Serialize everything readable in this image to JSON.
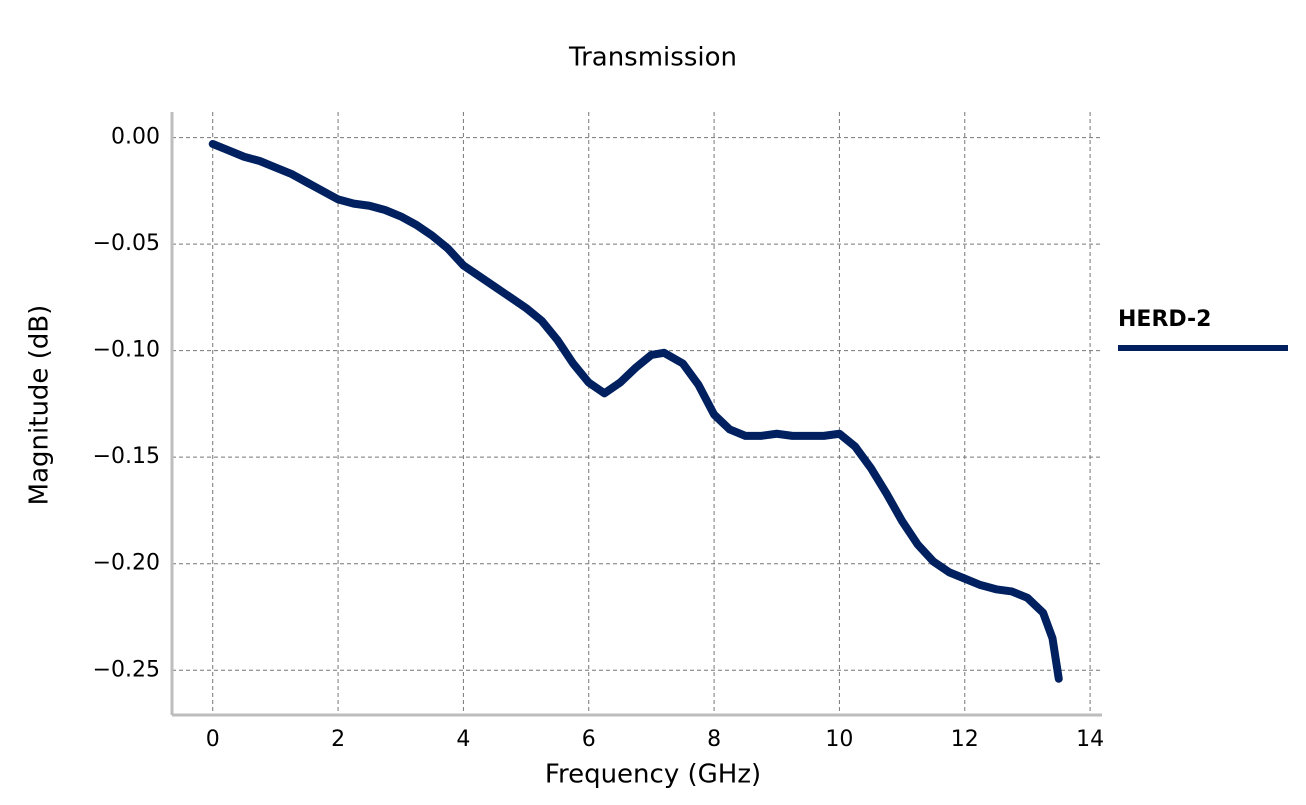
{
  "chart_data": {
    "type": "line",
    "title": "Transmission",
    "x_label": "Frequency (GHz)",
    "y_label": "Magnitude (dB)",
    "x": [
      0,
      0.25,
      0.5,
      0.75,
      1,
      1.25,
      1.5,
      1.75,
      2,
      2.25,
      2.5,
      2.75,
      3,
      3.25,
      3.5,
      3.75,
      4,
      4.25,
      4.5,
      4.75,
      5,
      5.25,
      5.5,
      5.75,
      6,
      6.25,
      6.5,
      6.75,
      7,
      7.2,
      7.5,
      7.75,
      8,
      8.25,
      8.5,
      8.75,
      9,
      9.25,
      9.5,
      9.75,
      10,
      10.25,
      10.5,
      10.75,
      11,
      11.25,
      11.5,
      11.75,
      12,
      12.25,
      12.5,
      12.75,
      13,
      13.25,
      13.4,
      13.5
    ],
    "series": [
      {
        "name": "HERD-2",
        "color": "#002060",
        "values": [
          -0.003,
          -0.006,
          -0.009,
          -0.011,
          -0.014,
          -0.017,
          -0.021,
          -0.025,
          -0.029,
          -0.031,
          -0.032,
          -0.034,
          -0.037,
          -0.041,
          -0.046,
          -0.052,
          -0.06,
          -0.065,
          -0.07,
          -0.075,
          -0.08,
          -0.086,
          -0.095,
          -0.106,
          -0.115,
          -0.12,
          -0.115,
          -0.108,
          -0.102,
          -0.101,
          -0.106,
          -0.116,
          -0.13,
          -0.137,
          -0.14,
          -0.14,
          -0.139,
          -0.14,
          -0.14,
          -0.14,
          -0.139,
          -0.145,
          -0.155,
          -0.167,
          -0.18,
          -0.191,
          -0.199,
          -0.204,
          -0.207,
          -0.21,
          -0.212,
          -0.213,
          -0.216,
          -0.223,
          -0.235,
          -0.254
        ]
      }
    ],
    "xlim": [
      -0.65,
      14.19
    ],
    "ylim": [
      -0.271,
      0.012
    ],
    "xticks": [
      0,
      2,
      4,
      6,
      8,
      10,
      12,
      14
    ],
    "yticks": [
      {
        "value": 0,
        "label": "0.00"
      },
      {
        "value": -0.05,
        "label": "−0.05"
      },
      {
        "value": -0.1,
        "label": "−0.10"
      },
      {
        "value": -0.15,
        "label": "−0.15"
      },
      {
        "value": -0.2,
        "label": "−0.20"
      },
      {
        "value": -0.25,
        "label": "−0.25"
      }
    ],
    "grid": true,
    "legend": "right"
  }
}
